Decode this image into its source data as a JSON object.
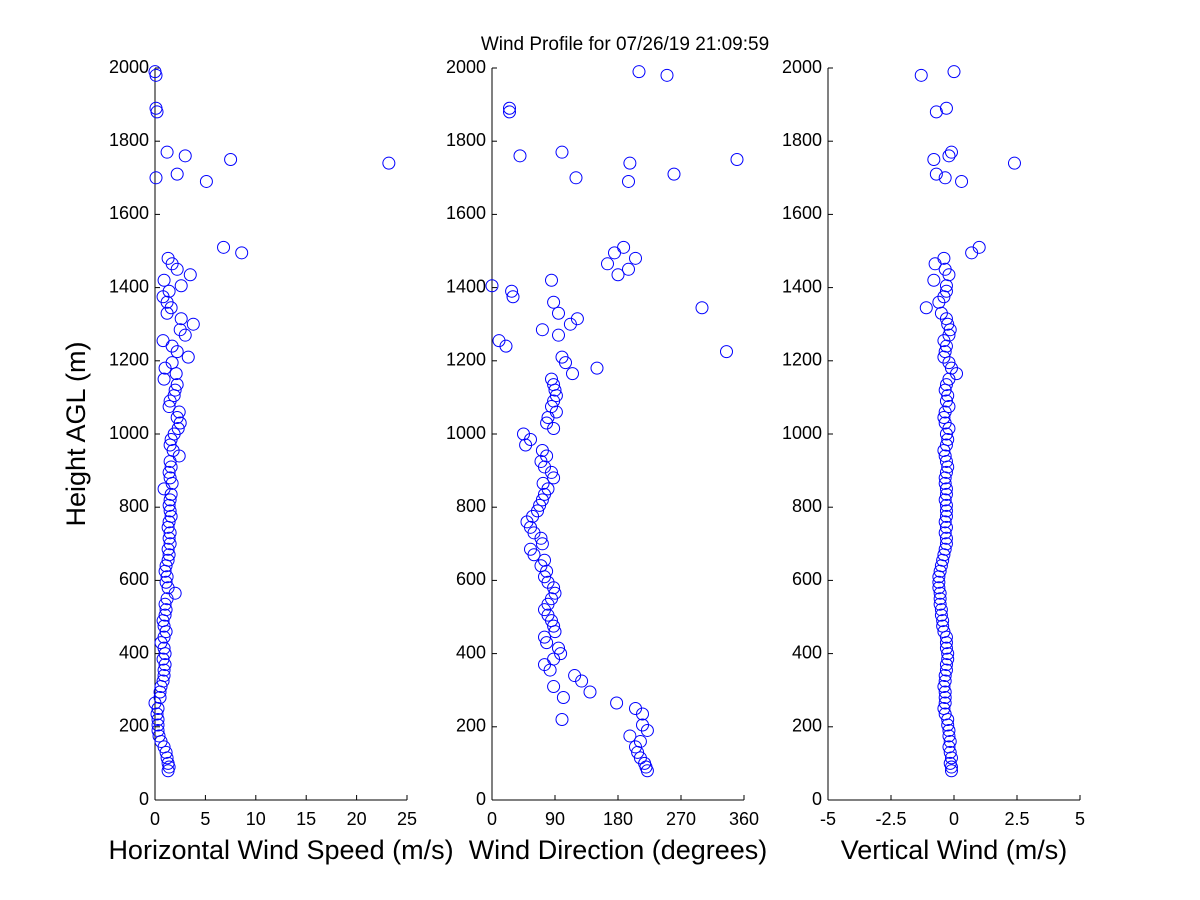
{
  "title": "Wind Profile for  07/26/19 21:09:59",
  "chart_data": [
    {
      "type": "scatter",
      "xlabel": "Horizontal Wind Speed (m/s)",
      "ylabel": "Height AGL (m)",
      "color": "#0000ff",
      "xlim": [
        0,
        25
      ],
      "xticks": [
        0,
        5,
        10,
        15,
        20,
        25
      ],
      "ylim": [
        0,
        2000
      ],
      "yticks": [
        0,
        200,
        400,
        600,
        800,
        1000,
        1200,
        1400,
        1600,
        1800,
        2000
      ],
      "x": [
        1.3,
        1.4,
        1.3,
        1.2,
        1.1,
        0.9,
        0.6,
        0.4,
        0.3,
        0.3,
        0.3,
        0.2,
        0.3,
        0.0,
        0.5,
        0.5,
        0.6,
        0.8,
        0.9,
        0.9,
        1.0,
        0.8,
        1.0,
        0.9,
        0.6,
        0.9,
        1.1,
        0.9,
        0.8,
        1.0,
        1.1,
        1.0,
        1.2,
        2.0,
        1.3,
        1.1,
        1.2,
        1.0,
        1.1,
        1.3,
        1.4,
        1.3,
        1.5,
        1.4,
        1.5,
        1.3,
        1.4,
        1.6,
        1.5,
        1.4,
        1.5,
        1.6,
        0.9,
        1.7,
        1.5,
        1.4,
        1.6,
        1.5,
        2.4,
        1.8,
        1.5,
        1.6,
        1.9,
        2.3,
        2.5,
        2.2,
        2.4,
        1.4,
        1.5,
        1.9,
        2.0,
        2.2,
        0.9,
        2.1,
        1.0,
        1.7,
        3.3,
        2.2,
        1.7,
        0.8,
        3.0,
        2.5,
        3.8,
        2.6,
        1.2,
        1.6,
        1.2,
        0.8,
        1.4,
        2.6,
        0.9,
        3.5,
        2.2,
        1.7,
        1.3,
        8.6,
        6.8,
        5.1,
        0.1,
        2.2,
        23.2,
        7.5,
        3.0,
        1.2,
        0.2,
        0.1,
        0.1,
        0.0
      ],
      "y": [
        80,
        90,
        100,
        115,
        130,
        145,
        160,
        175,
        190,
        205,
        220,
        235,
        250,
        265,
        280,
        295,
        310,
        325,
        340,
        355,
        370,
        385,
        400,
        415,
        430,
        445,
        460,
        475,
        490,
        505,
        520,
        535,
        550,
        565,
        580,
        595,
        610,
        625,
        640,
        655,
        670,
        685,
        700,
        715,
        730,
        745,
        760,
        775,
        790,
        805,
        820,
        835,
        850,
        865,
        880,
        895,
        910,
        925,
        940,
        955,
        970,
        985,
        1000,
        1015,
        1030,
        1045,
        1060,
        1075,
        1090,
        1105,
        1120,
        1135,
        1150,
        1165,
        1180,
        1195,
        1210,
        1225,
        1240,
        1255,
        1270,
        1285,
        1300,
        1315,
        1330,
        1345,
        1360,
        1375,
        1390,
        1405,
        1420,
        1435,
        1450,
        1465,
        1480,
        1495,
        1510,
        1690,
        1700,
        1710,
        1740,
        1750,
        1760,
        1770,
        1880,
        1890,
        1980,
        1990
      ]
    },
    {
      "type": "scatter",
      "xlabel": "Wind Direction (degrees)",
      "color": "#0000ff",
      "xlim": [
        0,
        360
      ],
      "xticks": [
        0,
        90,
        180,
        270,
        360
      ],
      "ylim": [
        0,
        2000
      ],
      "yticks": [
        0,
        200,
        400,
        600,
        800,
        1000,
        1200,
        1400,
        1600,
        1800,
        2000
      ],
      "x": [
        222,
        220,
        218,
        212,
        208,
        205,
        212,
        197,
        222,
        215,
        100,
        215,
        205,
        178,
        102,
        140,
        88,
        128,
        118,
        83,
        75,
        88,
        98,
        95,
        78,
        75,
        90,
        88,
        85,
        80,
        75,
        80,
        85,
        90,
        88,
        80,
        75,
        78,
        70,
        75,
        60,
        55,
        72,
        70,
        60,
        55,
        50,
        58,
        65,
        68,
        72,
        75,
        80,
        73,
        88,
        85,
        75,
        70,
        78,
        72,
        48,
        55,
        45,
        88,
        78,
        80,
        92,
        85,
        88,
        92,
        90,
        88,
        85,
        115,
        150,
        105,
        100,
        335,
        20,
        10,
        95,
        72,
        112,
        122,
        95,
        300,
        88,
        30,
        28,
        0,
        85,
        180,
        195,
        165,
        205,
        175,
        188,
        195,
        120,
        260,
        197,
        350,
        40,
        100,
        25,
        25,
        250,
        210
      ],
      "y": [
        80,
        90,
        100,
        115,
        130,
        145,
        160,
        175,
        190,
        205,
        220,
        235,
        250,
        265,
        280,
        295,
        310,
        325,
        340,
        355,
        370,
        385,
        400,
        415,
        430,
        445,
        460,
        475,
        490,
        505,
        520,
        535,
        550,
        565,
        580,
        595,
        610,
        625,
        640,
        655,
        670,
        685,
        700,
        715,
        730,
        745,
        760,
        775,
        790,
        805,
        820,
        835,
        850,
        865,
        880,
        895,
        910,
        925,
        940,
        955,
        970,
        985,
        1000,
        1015,
        1030,
        1045,
        1060,
        1075,
        1090,
        1105,
        1120,
        1135,
        1150,
        1165,
        1180,
        1195,
        1210,
        1225,
        1240,
        1255,
        1270,
        1285,
        1300,
        1315,
        1330,
        1345,
        1360,
        1375,
        1390,
        1405,
        1420,
        1435,
        1450,
        1465,
        1480,
        1495,
        1510,
        1690,
        1700,
        1710,
        1740,
        1750,
        1760,
        1770,
        1880,
        1890,
        1980,
        1990
      ]
    },
    {
      "type": "scatter",
      "xlabel": "Vertical Wind (m/s)",
      "color": "#0000ff",
      "xlim": [
        -5,
        5
      ],
      "xticks": [
        -5,
        -2.5,
        0,
        2.5,
        5
      ],
      "ylim": [
        0,
        2000
      ],
      "yticks": [
        0,
        200,
        400,
        600,
        800,
        1000,
        1200,
        1400,
        1600,
        1800,
        2000
      ],
      "x": [
        -0.1,
        -0.1,
        -0.15,
        -0.1,
        -0.15,
        -0.2,
        -0.15,
        -0.2,
        -0.2,
        -0.25,
        -0.25,
        -0.35,
        -0.4,
        -0.35,
        -0.35,
        -0.35,
        -0.4,
        -0.35,
        -0.35,
        -0.3,
        -0.3,
        -0.25,
        -0.25,
        -0.3,
        -0.3,
        -0.3,
        -0.4,
        -0.45,
        -0.45,
        -0.5,
        -0.5,
        -0.55,
        -0.55,
        -0.55,
        -0.6,
        -0.6,
        -0.6,
        -0.55,
        -0.5,
        -0.45,
        -0.4,
        -0.35,
        -0.3,
        -0.3,
        -0.35,
        -0.3,
        -0.35,
        -0.3,
        -0.3,
        -0.3,
        -0.35,
        -0.3,
        -0.3,
        -0.35,
        -0.35,
        -0.3,
        -0.25,
        -0.3,
        -0.35,
        -0.4,
        -0.3,
        -0.25,
        -0.3,
        -0.2,
        -0.35,
        -0.4,
        -0.35,
        -0.2,
        -0.3,
        -0.25,
        -0.35,
        -0.3,
        -0.2,
        0.1,
        -0.1,
        -0.2,
        -0.4,
        -0.35,
        -0.3,
        -0.4,
        -0.2,
        -0.15,
        -0.25,
        -0.3,
        -0.5,
        -1.1,
        -0.6,
        -0.4,
        -0.3,
        -0.3,
        -0.8,
        -0.2,
        -0.35,
        -0.75,
        -0.4,
        0.7,
        1.0,
        0.3,
        -0.35,
        -0.7,
        2.4,
        -0.8,
        -0.2,
        -0.1,
        -0.7,
        -0.3,
        -1.3,
        0.0
      ],
      "y": [
        80,
        90,
        100,
        115,
        130,
        145,
        160,
        175,
        190,
        205,
        220,
        235,
        250,
        265,
        280,
        295,
        310,
        325,
        340,
        355,
        370,
        385,
        400,
        415,
        430,
        445,
        460,
        475,
        490,
        505,
        520,
        535,
        550,
        565,
        580,
        595,
        610,
        625,
        640,
        655,
        670,
        685,
        700,
        715,
        730,
        745,
        760,
        775,
        790,
        805,
        820,
        835,
        850,
        865,
        880,
        895,
        910,
        925,
        940,
        955,
        970,
        985,
        1000,
        1015,
        1030,
        1045,
        1060,
        1075,
        1090,
        1105,
        1120,
        1135,
        1150,
        1165,
        1180,
        1195,
        1210,
        1225,
        1240,
        1255,
        1270,
        1285,
        1300,
        1315,
        1330,
        1345,
        1360,
        1375,
        1390,
        1405,
        1420,
        1435,
        1450,
        1465,
        1480,
        1495,
        1510,
        1690,
        1700,
        1710,
        1740,
        1750,
        1760,
        1770,
        1880,
        1890,
        1980,
        1990
      ]
    }
  ]
}
